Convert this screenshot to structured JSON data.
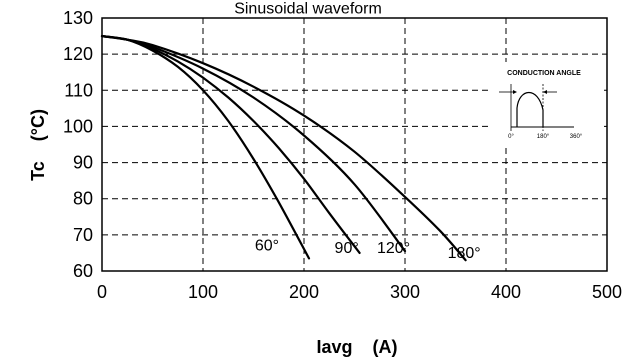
{
  "chart_data": {
    "type": "line",
    "title": "Sinusoidal waveform",
    "xlabel": "Iavg    (A)",
    "ylabel": "Tc    (°C)",
    "xlim": [
      0,
      500
    ],
    "ylim": [
      60,
      130
    ],
    "xticks": [
      "0",
      "100",
      "200",
      "300",
      "400",
      "500"
    ],
    "yticks": [
      "60",
      "70",
      "80",
      "90",
      "100",
      "110",
      "120",
      "130"
    ],
    "grid": true,
    "series": [
      {
        "name": "60°",
        "label": "60°",
        "x": [
          0,
          25,
          50,
          75,
          100,
          125,
          150,
          175,
          205
        ],
        "y": [
          125,
          124,
          121,
          116.5,
          110,
          101.5,
          91,
          79,
          63.5
        ]
      },
      {
        "name": "90°",
        "label": "90°",
        "x": [
          0,
          25,
          50,
          75,
          100,
          125,
          150,
          175,
          200,
          225,
          255
        ],
        "y": [
          125,
          124,
          121.5,
          118,
          113.5,
          108,
          101.5,
          94,
          85.5,
          76,
          65
        ]
      },
      {
        "name": "120°",
        "label": "120°",
        "x": [
          0,
          25,
          50,
          100,
          150,
          200,
          250,
          300
        ],
        "y": [
          125,
          124,
          122,
          116,
          108,
          97.5,
          84,
          65.5
        ]
      },
      {
        "name": "180°",
        "label": "180°",
        "x": [
          0,
          25,
          50,
          100,
          150,
          200,
          250,
          300,
          335,
          360
        ],
        "y": [
          125,
          124,
          122.5,
          117.5,
          111,
          103,
          93,
          80.5,
          71,
          63
        ]
      }
    ],
    "inset": {
      "title": "CONDUCTION ANGLE",
      "ticks": [
        "0°",
        "180°",
        "360°"
      ]
    }
  }
}
